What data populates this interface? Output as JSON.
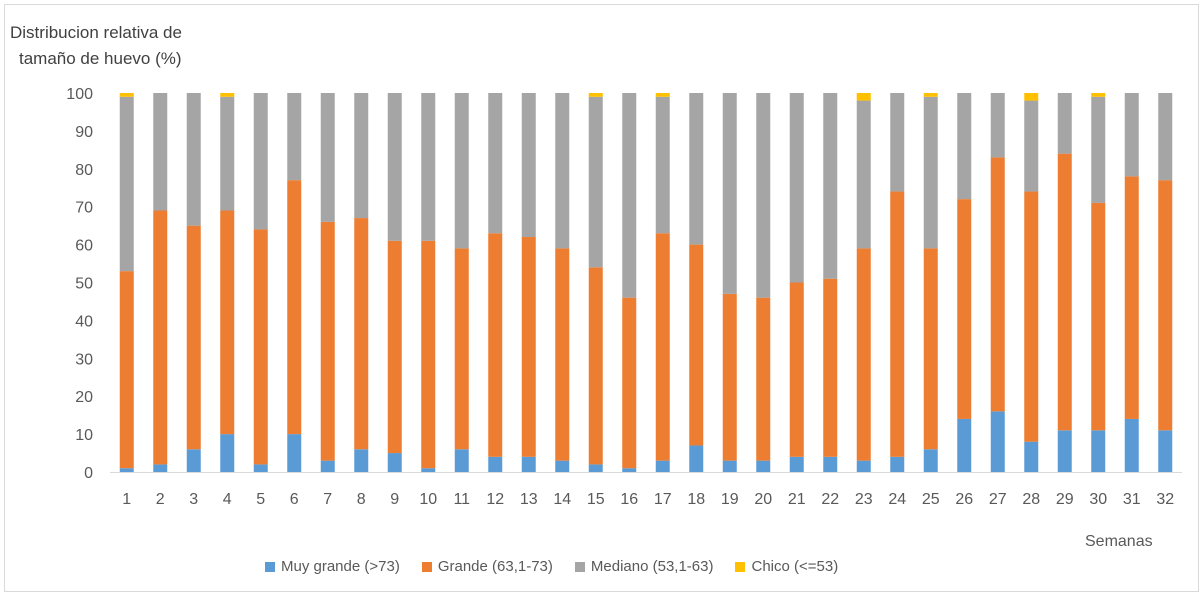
{
  "chart_data": {
    "type": "bar",
    "stacked": true,
    "ylabel_lines": [
      "Distribucion relativa de",
      "tamaño de huevo (%)"
    ],
    "xlabel": "Semanas",
    "ylim": [
      0,
      100
    ],
    "yticks": [
      0,
      10,
      20,
      30,
      40,
      50,
      60,
      70,
      80,
      90,
      100
    ],
    "grid": false,
    "legend_position": "bottom",
    "categories": [
      "1",
      "2",
      "3",
      "4",
      "5",
      "6",
      "7",
      "8",
      "9",
      "10",
      "11",
      "12",
      "13",
      "14",
      "15",
      "16",
      "17",
      "18",
      "19",
      "20",
      "21",
      "22",
      "23",
      "24",
      "25",
      "26",
      "27",
      "28",
      "29",
      "30",
      "31",
      "32"
    ],
    "series": [
      {
        "name": "Muy grande (>73)",
        "color": "#5b9bd5",
        "values": [
          1,
          2,
          6,
          10,
          2,
          10,
          3,
          6,
          5,
          1,
          6,
          4,
          4,
          3,
          2,
          1,
          3,
          7,
          3,
          3,
          4,
          4,
          3,
          4,
          6,
          14,
          16,
          8,
          11,
          11,
          14,
          11
        ]
      },
      {
        "name": "Grande (63,1-73)",
        "color": "#ed7d31",
        "values": [
          52,
          67,
          59,
          59,
          62,
          67,
          63,
          61,
          56,
          60,
          53,
          59,
          58,
          56,
          52,
          45,
          60,
          53,
          44,
          43,
          46,
          47,
          56,
          70,
          53,
          58,
          67,
          66,
          73,
          60,
          64,
          66
        ]
      },
      {
        "name": "Mediano (53,1-63)",
        "color": "#a5a5a5",
        "values": [
          46,
          31,
          35,
          30,
          36,
          23,
          34,
          33,
          39,
          39,
          41,
          37,
          38,
          41,
          45,
          54,
          36,
          40,
          53,
          54,
          50,
          49,
          39,
          26,
          40,
          28,
          17,
          24,
          16,
          28,
          22,
          23
        ]
      },
      {
        "name": "Chico (<=53)",
        "color": "#ffc000",
        "values": [
          1,
          0,
          0,
          1,
          0,
          0,
          0,
          0,
          0,
          0,
          0,
          0,
          0,
          0,
          1,
          0,
          1,
          0,
          0,
          0,
          0,
          0,
          2,
          0,
          1,
          0,
          0,
          2,
          0,
          1,
          0,
          0
        ]
      }
    ]
  }
}
